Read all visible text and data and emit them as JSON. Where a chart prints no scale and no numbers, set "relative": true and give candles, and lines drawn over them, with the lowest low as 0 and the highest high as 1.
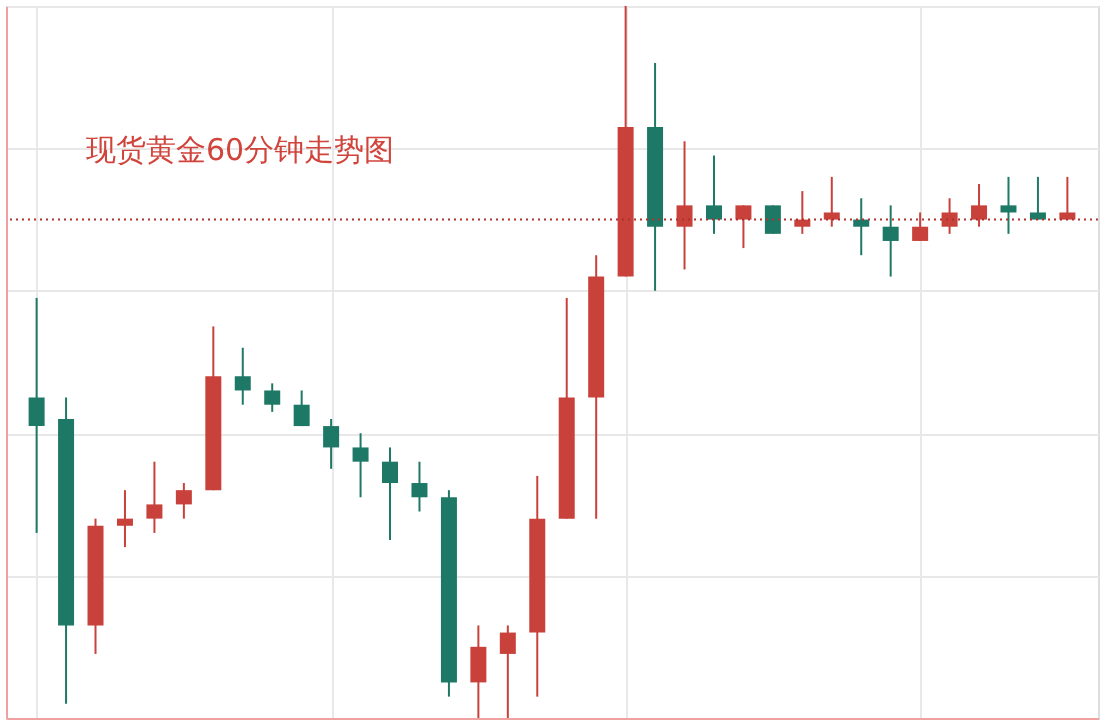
{
  "chart_data": {
    "type": "candlestick",
    "title": "现货黄金60分钟走势图",
    "relative": true,
    "grid": true,
    "categories": [
      null,
      null,
      null,
      null,
      null,
      null,
      null,
      null,
      null,
      null,
      null,
      null,
      null,
      null,
      null,
      null,
      null,
      null,
      null,
      null,
      null,
      null,
      null,
      null,
      null,
      null,
      null,
      null,
      null,
      null,
      null,
      null,
      null,
      null,
      null,
      null
    ],
    "ohlc": [
      [
        0.45,
        0.59,
        0.26,
        0.41
      ],
      [
        0.42,
        0.45,
        0.02,
        0.13
      ],
      [
        0.13,
        0.28,
        0.09,
        0.27
      ],
      [
        0.27,
        0.32,
        0.24,
        0.28
      ],
      [
        0.28,
        0.36,
        0.26,
        0.3
      ],
      [
        0.3,
        0.33,
        0.28,
        0.32
      ],
      [
        0.32,
        0.55,
        0.32,
        0.48
      ],
      [
        0.48,
        0.52,
        0.44,
        0.46
      ],
      [
        0.46,
        0.47,
        0.43,
        0.44
      ],
      [
        0.44,
        0.46,
        0.41,
        0.41
      ],
      [
        0.41,
        0.42,
        0.35,
        0.38
      ],
      [
        0.38,
        0.4,
        0.31,
        0.36
      ],
      [
        0.36,
        0.38,
        0.25,
        0.33
      ],
      [
        0.33,
        0.36,
        0.29,
        0.31
      ],
      [
        0.31,
        0.32,
        0.03,
        0.05
      ],
      [
        0.05,
        0.13,
        0.0,
        0.1
      ],
      [
        0.09,
        0.13,
        0.0,
        0.12
      ],
      [
        0.12,
        0.34,
        0.03,
        0.28
      ],
      [
        0.28,
        0.59,
        0.28,
        0.45
      ],
      [
        0.45,
        0.65,
        0.28,
        0.62
      ],
      [
        0.62,
        1.0,
        0.62,
        0.83
      ],
      [
        0.83,
        0.92,
        0.6,
        0.69
      ],
      [
        0.69,
        0.81,
        0.63,
        0.72
      ],
      [
        0.72,
        0.79,
        0.68,
        0.7
      ],
      [
        0.7,
        0.72,
        0.66,
        0.72
      ],
      [
        0.72,
        0.72,
        0.68,
        0.68
      ],
      [
        0.69,
        0.74,
        0.68,
        0.7
      ],
      [
        0.7,
        0.76,
        0.69,
        0.71
      ],
      [
        0.7,
        0.73,
        0.65,
        0.69
      ],
      [
        0.69,
        0.72,
        0.62,
        0.67
      ],
      [
        0.67,
        0.71,
        0.67,
        0.69
      ],
      [
        0.69,
        0.73,
        0.68,
        0.71
      ],
      [
        0.7,
        0.75,
        0.69,
        0.72
      ],
      [
        0.72,
        0.76,
        0.68,
        0.71
      ],
      [
        0.71,
        0.76,
        0.7,
        0.7
      ],
      [
        0.7,
        0.76,
        0.7,
        0.71
      ]
    ],
    "colors": [
      "#1e7866",
      "#1e7866",
      "#c8413b",
      "#c8413b",
      "#c8413b",
      "#c8413b",
      "#c8413b",
      "#1e7866",
      "#1e7866",
      "#1e7866",
      "#1e7866",
      "#1e7866",
      "#1e7866",
      "#1e7866",
      "#1e7866",
      "#c8413b",
      "#c8413b",
      "#c8413b",
      "#c8413b",
      "#c8413b",
      "#c8413b",
      "#1e7866",
      "#c8413b",
      "#1e7866",
      "#c8413b",
      "#1e7866",
      "#c8413b",
      "#c8413b",
      "#1e7866",
      "#1e7866",
      "#c8413b",
      "#c8413b",
      "#c8413b",
      "#1e7866",
      "#1e7866",
      "#c8413b"
    ],
    "ref_lines": [
      {
        "axis": "y",
        "value": 0.7,
        "label": null,
        "color": "#b03030",
        "line_style": "dotted"
      }
    ]
  }
}
